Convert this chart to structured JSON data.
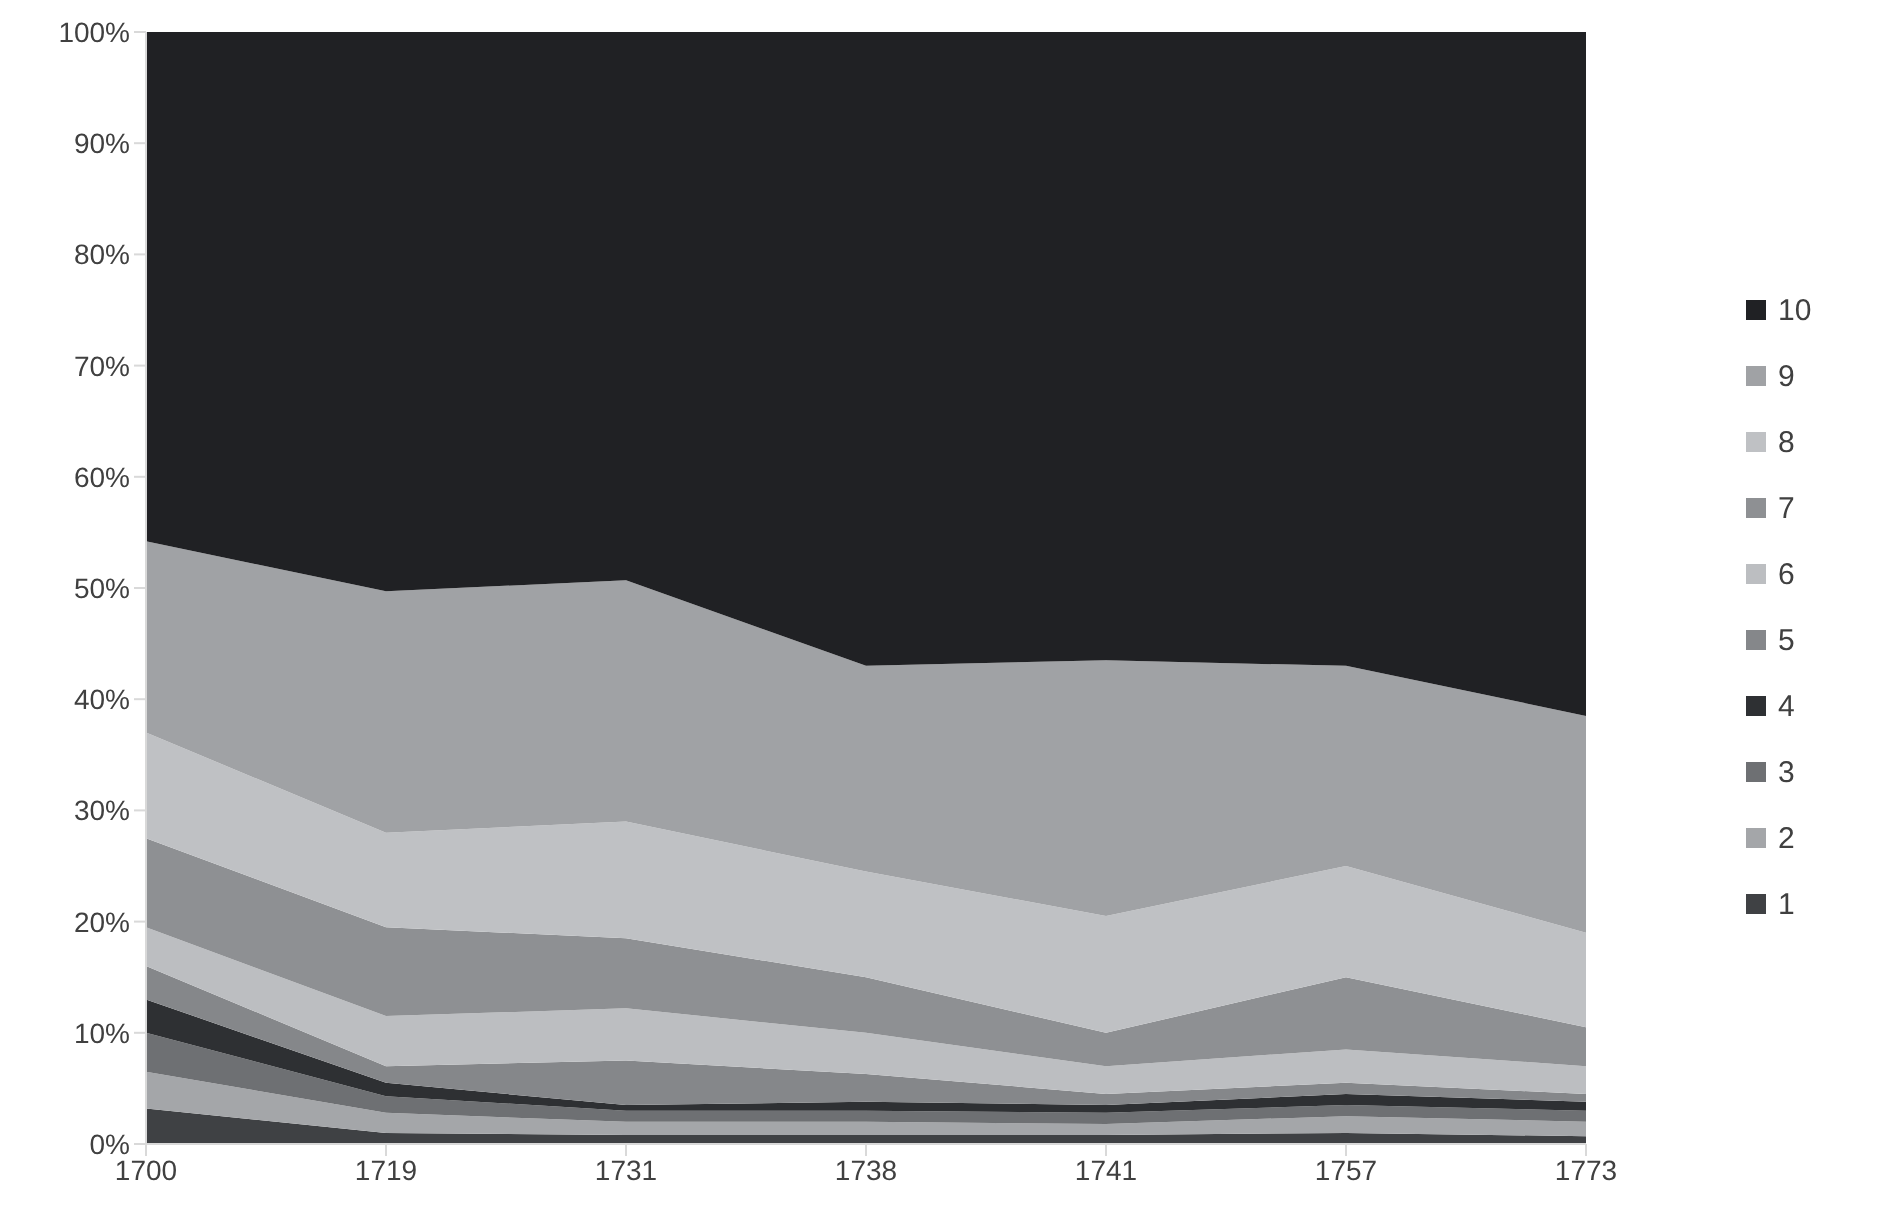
{
  "chart_data": {
    "type": "area",
    "stacked": true,
    "categories": [
      "1700",
      "1719",
      "1731",
      "1738",
      "1741",
      "1757",
      "1773"
    ],
    "series": [
      {
        "name": "1",
        "color": "#3f4144",
        "values": [
          3.2,
          1.0,
          0.8,
          0.8,
          0.8,
          1.0,
          0.7
        ]
      },
      {
        "name": "2",
        "color": "#a4a6a9",
        "values": [
          3.3,
          1.8,
          1.2,
          1.2,
          1.0,
          1.5,
          1.3
        ]
      },
      {
        "name": "3",
        "color": "#6e7073",
        "values": [
          3.5,
          1.5,
          1.0,
          1.0,
          1.0,
          1.0,
          1.0
        ]
      },
      {
        "name": "4",
        "color": "#2e3033",
        "values": [
          3.0,
          1.2,
          0.5,
          0.8,
          0.7,
          1.0,
          0.8
        ]
      },
      {
        "name": "5",
        "color": "#85878a",
        "values": [
          3.0,
          1.5,
          4.0,
          2.5,
          1.0,
          1.0,
          0.7
        ]
      },
      {
        "name": "6",
        "color": "#bcbec1",
        "values": [
          3.5,
          4.5,
          4.7,
          3.7,
          2.5,
          3.0,
          2.5
        ]
      },
      {
        "name": "7",
        "color": "#8e9093",
        "values": [
          8.0,
          8.0,
          6.3,
          5.0,
          3.0,
          6.5,
          3.5
        ]
      },
      {
        "name": "8",
        "color": "#bfc1c4",
        "values": [
          9.5,
          8.5,
          10.5,
          9.5,
          10.5,
          10.0,
          8.5
        ]
      },
      {
        "name": "9",
        "color": "#a0a2a5",
        "values": [
          17.2,
          21.7,
          21.7,
          18.5,
          23.0,
          18.0,
          19.5
        ]
      },
      {
        "name": "10",
        "color": "#202124",
        "values": [
          45.8,
          50.3,
          49.3,
          57.0,
          56.5,
          57.0,
          61.5
        ]
      }
    ],
    "ylim": [
      0,
      100
    ],
    "yticks": [
      {
        "value": 0,
        "label": "0%"
      },
      {
        "value": 10,
        "label": "10%"
      },
      {
        "value": 20,
        "label": "20%"
      },
      {
        "value": 30,
        "label": "30%"
      },
      {
        "value": 40,
        "label": "40%"
      },
      {
        "value": 50,
        "label": "50%"
      },
      {
        "value": 60,
        "label": "60%"
      },
      {
        "value": 70,
        "label": "70%"
      },
      {
        "value": 80,
        "label": "80%"
      },
      {
        "value": 90,
        "label": "90%"
      },
      {
        "value": 100,
        "label": "100%"
      }
    ],
    "legend": "right"
  }
}
